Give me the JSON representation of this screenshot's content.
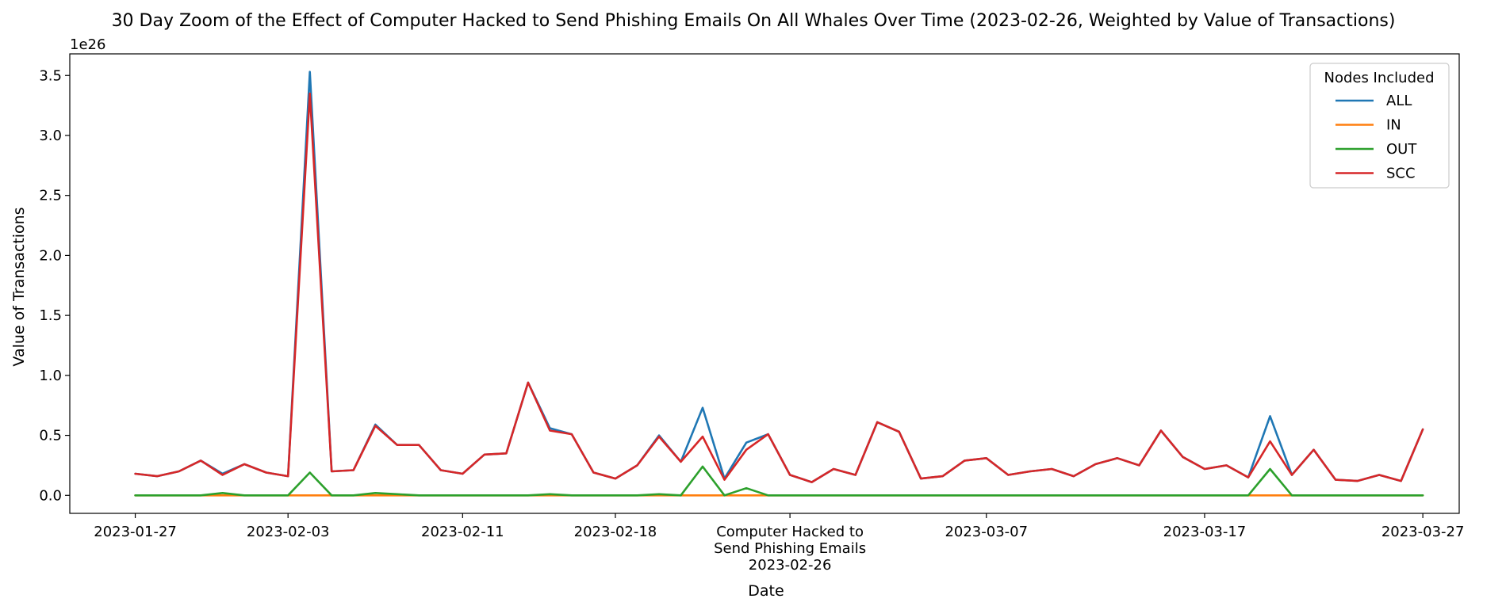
{
  "chart_data": {
    "type": "line",
    "title": "30 Day Zoom of the Effect of Computer Hacked to Send Phishing Emails On All Whales Over Time (2023-02-26, Weighted by Value of Transactions)",
    "xlabel": "Date",
    "ylabel": "Value of Transactions",
    "y_scale_label": "1e26",
    "y_multiplier": 1e+26,
    "ylim": [
      -0.15,
      3.68
    ],
    "xlim": [
      "2023-01-24T00:00",
      "2023-03-28T16:00"
    ],
    "x_ticks": [
      {
        "date": "2023-01-27",
        "label": "2023-01-27"
      },
      {
        "date": "2023-02-03",
        "label": "2023-02-03"
      },
      {
        "date": "2023-02-11",
        "label": "2023-02-11"
      },
      {
        "date": "2023-02-18",
        "label": "2023-02-18"
      },
      {
        "date": "2023-03-07",
        "label": "2023-03-07"
      },
      {
        "date": "2023-03-17",
        "label": "2023-03-17"
      },
      {
        "date": "2023-03-27",
        "label": "2023-03-27"
      }
    ],
    "y_ticks": [
      0.0,
      0.5,
      1.0,
      1.5,
      2.0,
      2.5,
      3.0,
      3.5
    ],
    "y_tick_labels": [
      "0.0",
      "0.5",
      "1.0",
      "1.5",
      "2.0",
      "2.5",
      "3.0",
      "3.5"
    ],
    "event": {
      "date": "2023-02-26",
      "label_lines": [
        "Computer Hacked to",
        "Send Phishing Emails",
        "2023-02-26"
      ]
    },
    "legend": {
      "title": "Nodes Included",
      "position": "top-right"
    },
    "grid": false,
    "x": [
      "2023-01-27",
      "2023-01-28",
      "2023-01-29",
      "2023-01-30",
      "2023-01-31",
      "2023-02-01",
      "2023-02-02",
      "2023-02-03",
      "2023-02-04",
      "2023-02-05",
      "2023-02-06",
      "2023-02-07",
      "2023-02-08",
      "2023-02-09",
      "2023-02-10",
      "2023-02-11",
      "2023-02-12",
      "2023-02-13",
      "2023-02-14",
      "2023-02-15",
      "2023-02-16",
      "2023-02-17",
      "2023-02-18",
      "2023-02-19",
      "2023-02-20",
      "2023-02-21",
      "2023-02-22",
      "2023-02-23",
      "2023-02-24",
      "2023-02-25",
      "2023-02-26",
      "2023-02-27",
      "2023-02-28",
      "2023-03-01",
      "2023-03-02",
      "2023-03-03",
      "2023-03-04",
      "2023-03-05",
      "2023-03-06",
      "2023-03-07",
      "2023-03-08",
      "2023-03-09",
      "2023-03-10",
      "2023-03-11",
      "2023-03-12",
      "2023-03-13",
      "2023-03-14",
      "2023-03-15",
      "2023-03-16",
      "2023-03-17",
      "2023-03-18",
      "2023-03-19",
      "2023-03-20",
      "2023-03-21",
      "2023-03-22",
      "2023-03-23",
      "2023-03-24",
      "2023-03-25",
      "2023-03-26",
      "2023-03-27"
    ],
    "series": [
      {
        "name": "ALL",
        "color": "#1f77b4",
        "values": [
          0.18,
          0.16,
          0.2,
          0.29,
          0.18,
          0.26,
          0.19,
          0.16,
          3.53,
          0.2,
          0.21,
          0.59,
          0.42,
          0.42,
          0.21,
          0.18,
          0.34,
          0.35,
          0.94,
          0.56,
          0.51,
          0.19,
          0.14,
          0.25,
          0.5,
          0.28,
          0.73,
          0.14,
          0.44,
          0.51,
          0.17,
          0.11,
          0.22,
          0.17,
          0.61,
          0.53,
          0.14,
          0.16,
          0.29,
          0.31,
          0.17,
          0.2,
          0.22,
          0.16,
          0.26,
          0.31,
          0.25,
          0.54,
          0.32,
          0.22,
          0.25,
          0.15,
          0.66,
          0.17,
          0.38,
          0.13,
          0.12,
          0.17,
          0.12,
          0.55
        ]
      },
      {
        "name": "IN",
        "color": "#ff7f0e",
        "values": [
          0.0,
          0.0,
          0.0,
          0.0,
          0.0,
          0.0,
          0.0,
          0.0,
          0.0,
          0.0,
          0.0,
          0.0,
          0.0,
          0.0,
          0.0,
          0.0,
          0.0,
          0.0,
          0.0,
          0.0,
          0.0,
          0.0,
          0.0,
          0.0,
          0.0,
          0.0,
          0.0,
          0.0,
          0.0,
          0.0,
          0.0,
          0.0,
          0.0,
          0.0,
          0.0,
          0.0,
          0.0,
          0.0,
          0.0,
          0.0,
          0.0,
          0.0,
          0.0,
          0.0,
          0.0,
          0.0,
          0.0,
          0.0,
          0.0,
          0.0,
          0.0,
          0.0,
          0.0,
          0.0,
          0.0,
          0.0,
          0.0,
          0.0,
          0.0,
          0.0
        ]
      },
      {
        "name": "OUT",
        "color": "#2ca02c",
        "values": [
          0.0,
          0.0,
          0.0,
          0.0,
          0.02,
          0.0,
          0.0,
          0.0,
          0.19,
          0.0,
          0.0,
          0.02,
          0.01,
          0.0,
          0.0,
          0.0,
          0.0,
          0.0,
          0.0,
          0.01,
          0.0,
          0.0,
          0.0,
          0.0,
          0.01,
          0.0,
          0.24,
          0.0,
          0.06,
          0.0,
          0.0,
          0.0,
          0.0,
          0.0,
          0.0,
          0.0,
          0.0,
          0.0,
          0.0,
          0.0,
          0.0,
          0.0,
          0.0,
          0.0,
          0.0,
          0.0,
          0.0,
          0.0,
          0.0,
          0.0,
          0.0,
          0.0,
          0.22,
          0.0,
          0.0,
          0.0,
          0.0,
          0.0,
          0.0,
          0.0
        ]
      },
      {
        "name": "SCC",
        "color": "#d62728",
        "values": [
          0.18,
          0.16,
          0.2,
          0.29,
          0.17,
          0.26,
          0.19,
          0.16,
          3.35,
          0.2,
          0.21,
          0.58,
          0.42,
          0.42,
          0.21,
          0.18,
          0.34,
          0.35,
          0.94,
          0.54,
          0.51,
          0.19,
          0.14,
          0.25,
          0.49,
          0.28,
          0.49,
          0.13,
          0.38,
          0.51,
          0.17,
          0.11,
          0.22,
          0.17,
          0.61,
          0.53,
          0.14,
          0.16,
          0.29,
          0.31,
          0.17,
          0.2,
          0.22,
          0.16,
          0.26,
          0.31,
          0.25,
          0.54,
          0.32,
          0.22,
          0.25,
          0.15,
          0.45,
          0.17,
          0.38,
          0.13,
          0.12,
          0.17,
          0.12,
          0.55
        ]
      }
    ]
  }
}
